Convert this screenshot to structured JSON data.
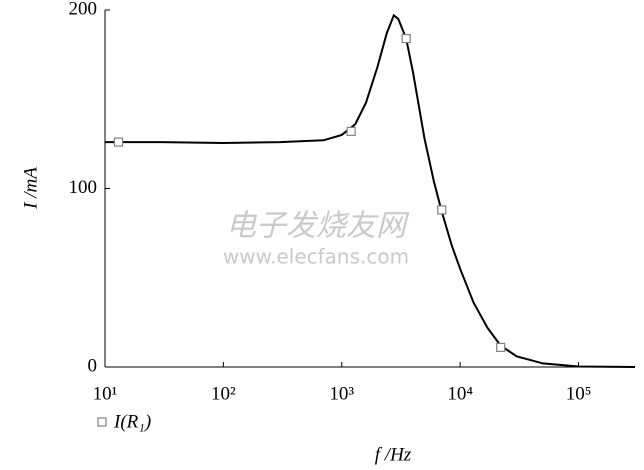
{
  "chart_data": {
    "type": "line",
    "x_label": "f /Hz",
    "y_label": "I /mA",
    "xlim": [
      10,
      300000
    ],
    "log_x": true,
    "xticks": [
      {
        "value": 10,
        "label": "10¹"
      },
      {
        "value": 100,
        "label": "10²"
      },
      {
        "value": 1000,
        "label": "10³"
      },
      {
        "value": 10000,
        "label": "10⁴"
      },
      {
        "value": 100000,
        "label": "10⁵"
      }
    ],
    "ylim": [
      0,
      200
    ],
    "yticks": [
      0,
      100,
      200
    ],
    "legend": "bottom-left",
    "series": [
      {
        "name": "I(R₁)",
        "color": "#000000",
        "marker_color": "#808080",
        "x": [
          10,
          30,
          100,
          300,
          700,
          1000,
          1300,
          1600,
          2000,
          2400,
          2750,
          3000,
          3500,
          4000,
          5000,
          6000,
          7000,
          8500,
          10000,
          13000,
          17000,
          22000,
          30000,
          50000,
          100000,
          300000
        ],
        "values": [
          126,
          126,
          125.5,
          126,
          127,
          130,
          136,
          148,
          168,
          187,
          197,
          195,
          184,
          165,
          128,
          104,
          87,
          68,
          55,
          36,
          22,
          12,
          6,
          2,
          0.3,
          0
        ],
        "markers": {
          "x": [
            13,
            1200,
            3500,
            7000,
            22000
          ],
          "values": [
            126,
            132,
            184,
            88,
            11
          ]
        }
      }
    ],
    "watermark": [
      "电子发烧友网",
      "www.elecfans.com"
    ]
  }
}
